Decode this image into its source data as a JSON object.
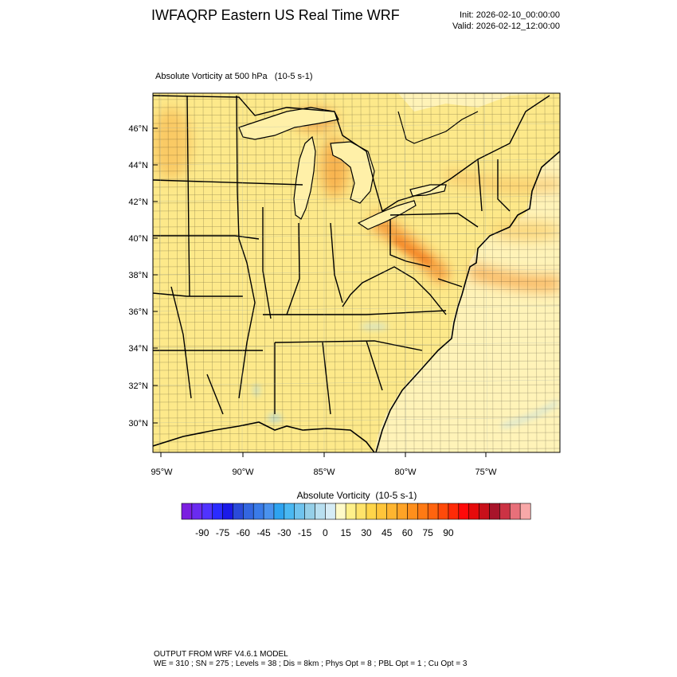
{
  "header": {
    "title": "IWFAQRP Eastern US Real Time WRF",
    "init": "Init: 2026-02-10_00:00:00",
    "valid": "Valid: 2026-02-12_12:00:00"
  },
  "map": {
    "field_title": "Absolute Vorticity at 500 hPa   (10-5 s-1)",
    "lat_labels": [
      "46°N",
      "44°N",
      "42°N",
      "40°N",
      "38°N",
      "36°N",
      "34°N",
      "32°N",
      "30°N"
    ],
    "lon_labels": [
      "95°W",
      "90°W",
      "85°W",
      "80°W",
      "75°W"
    ],
    "colors": {
      "land_base": "#fde98a",
      "ocean_base": "#fff3b8",
      "maximum": "#f47d1e",
      "boundary": "#000000"
    }
  },
  "colorbar": {
    "title": "Absolute Vorticity  (10-5 s-1)",
    "tick_labels": [
      "-90",
      "-75",
      "-60",
      "-45",
      "-30",
      "-15",
      "0",
      "15",
      "30",
      "45",
      "60",
      "75",
      "90"
    ],
    "colors": [
      "#7b1fe0",
      "#6a2bf0",
      "#5033ff",
      "#2b2bff",
      "#1a1ae8",
      "#2a4ad9",
      "#3366e0",
      "#3a7be8",
      "#4a92ee",
      "#2ea3f0",
      "#4ab8f2",
      "#6fc3ee",
      "#95cfe8",
      "#b8dff0",
      "#d6ecf6",
      "#fffac8",
      "#fff08a",
      "#ffe36a",
      "#ffd54a",
      "#ffc53a",
      "#ffb530",
      "#ffa326",
      "#ff8f1c",
      "#ff7a14",
      "#ff640f",
      "#ff4a0a",
      "#ff2b08",
      "#ff0a0a",
      "#e60b0b",
      "#c8101a",
      "#a8142a",
      "#cc3344",
      "#e8707a",
      "#f8a8a8"
    ]
  },
  "footer": {
    "line1": "OUTPUT FROM WRF V4.6.1 MODEL",
    "line2": "WE = 310 ; SN = 275 ; Levels = 38 ; Dis = 8km ; Phys Opt = 8 ; PBL Opt = 1 ; Cu Opt = 3"
  }
}
